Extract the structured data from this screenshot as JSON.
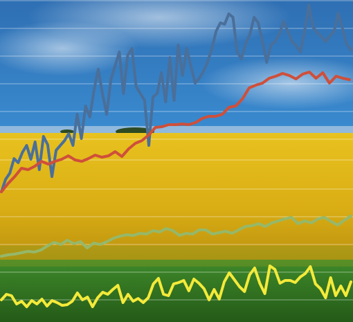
{
  "chart_data": {
    "type": "line",
    "title": "",
    "xlabel": "",
    "ylabel": "",
    "grid": true,
    "legend": "none",
    "ylim": [
      0,
      465
    ],
    "background": {
      "sky_top": "#2f6fb3",
      "sky_bottom": "#3a8bd0",
      "horizon_cloud": "#c9d9e6",
      "canola": "#e8c21f",
      "canola_dark": "#b58c0e",
      "grass": "#3f8a2a",
      "grass_dark": "#245a18",
      "gridline": "#ffffff"
    },
    "series": [
      {
        "color": "#4a6f9a",
        "values": [
          188,
          206,
          215,
          236,
          230,
          245,
          255,
          235,
          260,
          220,
          268,
          256,
          210,
          248,
          255,
          262,
          272,
          255,
          300,
          265,
          312,
          296,
          335,
          365,
          330,
          300,
          350,
          370,
          390,
          330,
          385,
          395,
          340,
          330,
          320,
          255,
          325,
          330,
          360,
          318,
          382,
          320,
          400,
          356,
          395,
          370,
          345,
          352,
          362,
          376,
          395,
          420,
          432,
          430,
          445,
          440,
          390,
          380,
          402,
          415,
          440,
          432,
          405,
          375,
          400,
          405,
          416,
          434,
          420,
          405,
          399,
          390,
          420,
          458,
          426,
          418,
          412,
          405,
          413,
          420,
          446,
          424,
          401,
          393
        ]
      },
      {
        "color": "#cf4f3a",
        "values": [
          188,
          200,
          210,
          222,
          220,
          225,
          232,
          228,
          232,
          235,
          240,
          234,
          232,
          236,
          241,
          238,
          240,
          246,
          239,
          250,
          258,
          262,
          270,
          281,
          282,
          285,
          285,
          286,
          285,
          288,
          294,
          297,
          297,
          300,
          310,
          312,
          322,
          338,
          342,
          345,
          352,
          355,
          359,
          356,
          351,
          358,
          361,
          352,
          360,
          345,
          355,
          352,
          350
        ]
      },
      {
        "color": "#95b86a",
        "values": [
          95,
          97,
          98,
          100,
          102,
          101,
          104,
          110,
          115,
          112,
          118,
          113,
          116,
          107,
          114,
          112,
          116,
          121,
          124,
          126,
          125,
          128,
          127,
          132,
          130,
          135,
          132,
          125,
          128,
          127,
          133,
          133,
          127,
          129,
          131,
          128,
          133,
          138,
          139,
          142,
          138,
          143,
          146,
          149,
          151,
          142,
          146,
          143,
          149,
          151,
          145,
          140,
          147,
          153
        ]
      },
      {
        "color": "#f4ea3a",
        "values": [
          32,
          40,
          38,
          26,
          30,
          22,
          31,
          26,
          33,
          23,
          31,
          28,
          24,
          25,
          30,
          42,
          32,
          36,
          22,
          35,
          43,
          40,
          47,
          53,
          28,
          40,
          30,
          34,
          28,
          35,
          55,
          63,
          40,
          38,
          55,
          57,
          60,
          45,
          62,
          56,
          48,
          32,
          47,
          33,
          58,
          71,
          61,
          51,
          44,
          68,
          78,
          56,
          41,
          81,
          76,
          56,
          60,
          60,
          57,
          65,
          70,
          80,
          55,
          48,
          35,
          64,
          38,
          52,
          38,
          58
        ]
      }
    ],
    "gridlines": [
      464,
      424,
      384,
      344,
      304,
      264,
      234,
      192,
      152,
      112,
      72,
      32
    ]
  }
}
